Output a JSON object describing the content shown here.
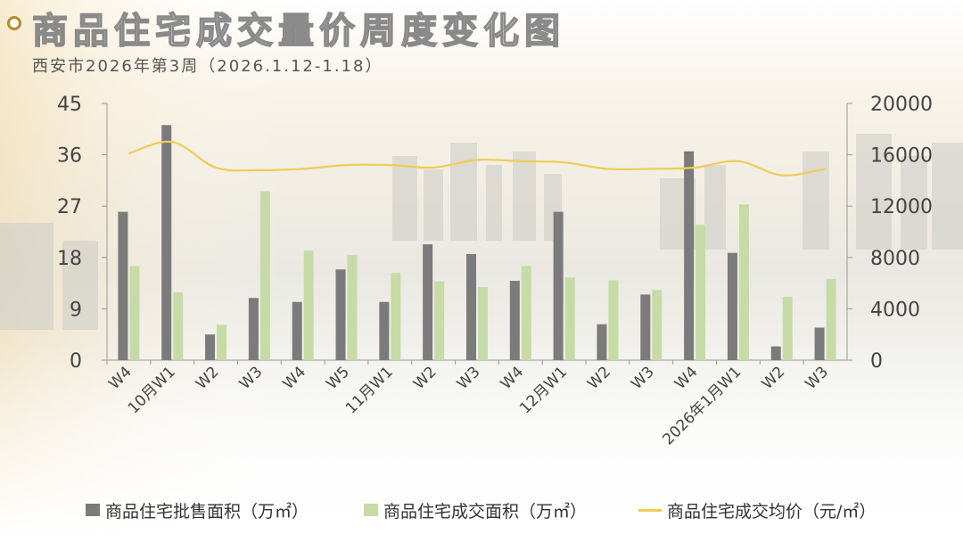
{
  "header": {
    "title": "商品住宅成交量价周度变化图",
    "subtitle": "西安市2026年第3周（2026.1.12-1.18）"
  },
  "colors": {
    "supply": "#7b7b7b",
    "deal": "#c7dba6",
    "price": "#f0cc55",
    "accent": "#b98a2a"
  },
  "chart_data": {
    "type": "bar",
    "categories": [
      "W4",
      "10月W1",
      "W2",
      "W3",
      "W4",
      "W5",
      "11月W1",
      "W2",
      "W3",
      "W4",
      "12月W1",
      "W2",
      "W3",
      "W4",
      "2026年1月W1",
      "W2",
      "W3"
    ],
    "series": [
      {
        "name": "商品住宅批售面积（万㎡）",
        "type": "bar",
        "axis": "left",
        "values": [
          26.0,
          41.2,
          4.5,
          10.9,
          10.2,
          15.9,
          10.2,
          20.3,
          18.6,
          13.9,
          26.0,
          6.3,
          11.5,
          36.6,
          18.8,
          2.4,
          5.7
        ]
      },
      {
        "name": "商品住宅成交面积（万㎡）",
        "type": "bar",
        "axis": "left",
        "values": [
          16.5,
          11.9,
          6.2,
          29.6,
          19.2,
          18.4,
          15.3,
          13.8,
          12.8,
          16.5,
          14.5,
          14.0,
          12.3,
          23.7,
          27.3,
          11.1,
          14.2
        ]
      },
      {
        "name": "商品住宅成交均价（元/㎡）",
        "type": "line",
        "axis": "right",
        "values": [
          16100,
          17000,
          15000,
          14800,
          14900,
          15200,
          15200,
          15000,
          15600,
          15500,
          15400,
          14900,
          14900,
          15000,
          15500,
          14400,
          14900
        ]
      }
    ],
    "y_left": {
      "min": 0,
      "max": 45,
      "ticks": [
        "0",
        "9",
        "18",
        "27",
        "36",
        "45"
      ]
    },
    "y_right": {
      "min": 0,
      "max": 20000,
      "ticks": [
        "0",
        "4000",
        "8000",
        "12000",
        "16000",
        "20000"
      ]
    },
    "legend_position": "bottom",
    "grid": false
  }
}
